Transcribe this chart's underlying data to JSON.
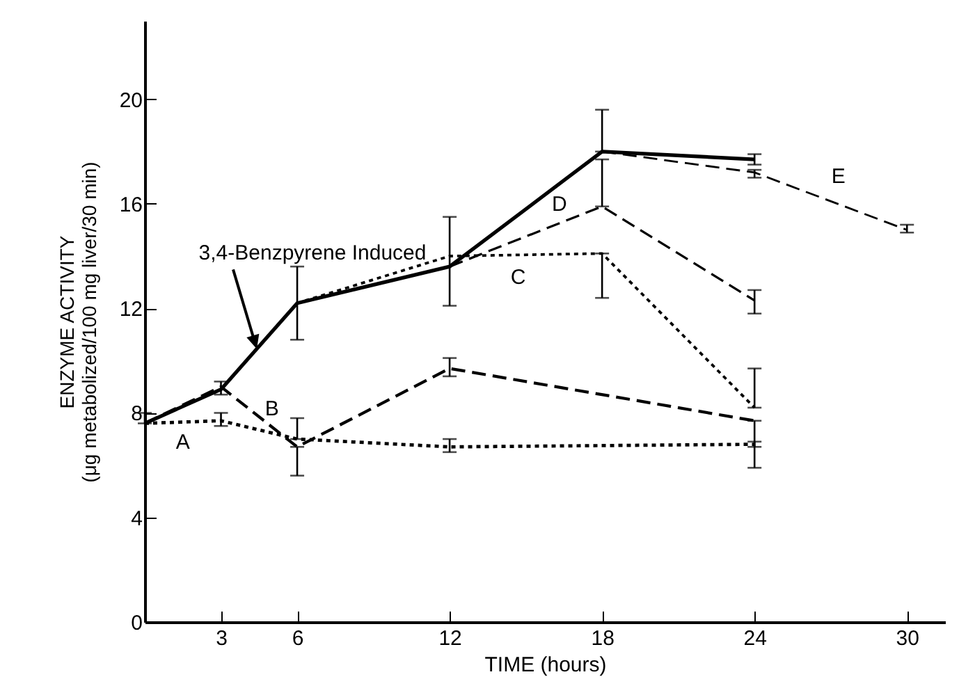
{
  "chart_data": {
    "type": "line",
    "xlabel": "TIME (hours)",
    "ylabel": "ENZYME ACTIVITY\n(μg metabolized/100 mg liver/30 min)",
    "xlim": [
      0,
      31.5
    ],
    "xticks": [
      3,
      6,
      12,
      18,
      24,
      30
    ],
    "ylim": [
      0,
      23
    ],
    "yticks": [
      0,
      4,
      8,
      12,
      16,
      20
    ],
    "grid": false,
    "marker": "none",
    "series": [
      {
        "name": "3,4-Benzpyrene Induced",
        "color": "#000000",
        "line_style": "solid",
        "x": [
          0,
          3,
          6,
          12,
          18,
          24
        ],
        "values": [
          7.6,
          8.9,
          12.2,
          13.6,
          18.0,
          17.7
        ],
        "errors": [
          [
            7.6,
            8.0
          ],
          [
            8.7,
            9.2
          ],
          [
            10.8,
            13.6
          ],
          [
            12.1,
            15.5
          ],
          [
            18.0,
            19.6
          ],
          [
            17.5,
            17.9
          ]
        ]
      },
      {
        "name": "A",
        "color": "#000000",
        "line_style": "dotted",
        "x": [
          0,
          3,
          6,
          12,
          24
        ],
        "values": [
          7.6,
          7.7,
          7.0,
          6.7,
          6.8
        ],
        "errors": [
          null,
          [
            7.5,
            8.0
          ],
          [
            7.0,
            7.8
          ],
          [
            6.5,
            7.0
          ],
          [
            6.7,
            6.9
          ]
        ]
      },
      {
        "name": "B",
        "color": "#000000",
        "line_style": "dashed",
        "x": [
          0,
          3,
          6,
          12,
          24
        ],
        "values": [
          7.6,
          9.0,
          6.7,
          9.7,
          7.7
        ],
        "errors": [
          null,
          null,
          [
            5.6,
            6.7
          ],
          [
            9.4,
            10.1
          ],
          [
            5.9,
            7.7
          ]
        ]
      },
      {
        "name": "C",
        "color": "#000000",
        "line_style": "dotted",
        "x": [
          6,
          12,
          18,
          24
        ],
        "values": [
          12.2,
          14.0,
          14.1,
          8.2
        ],
        "errors": [
          null,
          null,
          [
            12.4,
            14.1
          ],
          [
            8.2,
            9.7
          ]
        ]
      },
      {
        "name": "D",
        "color": "#000000",
        "line_style": "dashed",
        "x": [
          12,
          18,
          24
        ],
        "values": [
          13.6,
          15.9,
          12.3
        ],
        "errors": [
          null,
          [
            15.9,
            17.7
          ],
          [
            11.8,
            12.7
          ]
        ]
      },
      {
        "name": "E",
        "color": "#000000",
        "line_style": "dashed",
        "x": [
          18,
          24,
          30
        ],
        "values": [
          18.0,
          17.2,
          15.0
        ],
        "errors": [
          null,
          [
            17.0,
            17.3
          ],
          [
            14.9,
            15.2
          ]
        ]
      }
    ]
  }
}
